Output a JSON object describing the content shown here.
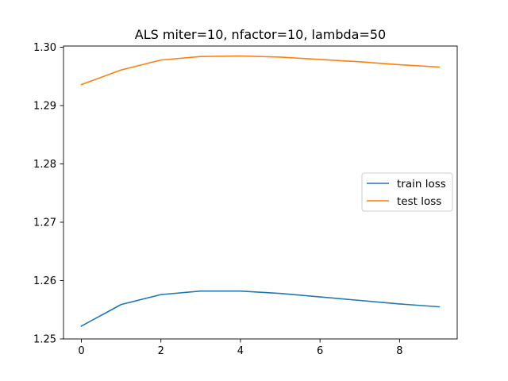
{
  "chart_data": {
    "type": "line",
    "title": "ALS miter=10, nfactor=10, lambda=50",
    "xlabel": "",
    "ylabel": "",
    "x": [
      0,
      1,
      2,
      3,
      4,
      5,
      6,
      7,
      8,
      9
    ],
    "series": [
      {
        "name": "train loss",
        "color": "#1f77b4",
        "values": [
          1.2522,
          1.2559,
          1.2576,
          1.2582,
          1.2582,
          1.2578,
          1.2572,
          1.2566,
          1.256,
          1.2555
        ]
      },
      {
        "name": "test loss",
        "color": "#ff7f0e",
        "values": [
          1.2936,
          1.2961,
          1.2978,
          1.2984,
          1.2985,
          1.2983,
          1.2979,
          1.2975,
          1.297,
          1.2966
        ]
      }
    ],
    "xlim": [
      -0.45,
      9.45
    ],
    "ylim": [
      1.25,
      1.3002
    ],
    "xticks": [
      0,
      2,
      4,
      6,
      8
    ],
    "xtick_labels": [
      "0",
      "2",
      "4",
      "6",
      "8"
    ],
    "yticks": [
      1.25,
      1.26,
      1.27,
      1.28,
      1.29,
      1.3
    ],
    "ytick_labels": [
      "1.25",
      "1.26",
      "1.27",
      "1.28",
      "1.29",
      "1.30"
    ],
    "grid": false,
    "legend_position": "center-right"
  }
}
